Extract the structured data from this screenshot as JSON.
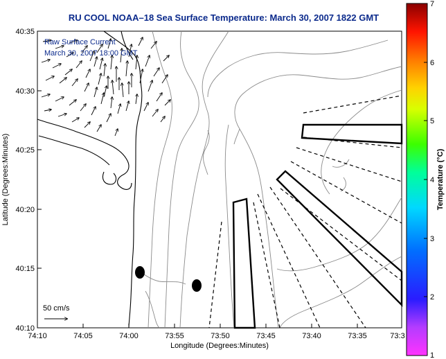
{
  "title": "RU COOL  NOAA–18  Sea Surface Temperature:  March 30, 2007 1822 GMT",
  "annotation": {
    "line1": "Raw Surface Current",
    "line2": "March 30, 2007 18:00 GMT"
  },
  "scale_label": "50 cm/s",
  "x_axis": {
    "label": "Longitude (Degrees:Minutes)",
    "ticks": [
      "74:10",
      "74:05",
      "74:00",
      "73:55",
      "73:50",
      "73:45",
      "73:40",
      "73:35",
      "73:3"
    ]
  },
  "y_axis": {
    "label": "Latitude (Degrees:Minutes)",
    "ticks": [
      "40:35",
      "40:30",
      "40:25",
      "40:20",
      "40:15",
      "40:10"
    ]
  },
  "colorbar": {
    "label": "Temperature (°C)",
    "ticks": [
      "7",
      "6",
      "5",
      "4",
      "3",
      "2",
      "1"
    ],
    "range": [
      1,
      7
    ]
  },
  "colors": {
    "title": "#0b2a8c",
    "annotation": "#0b2a8c",
    "contours": "#8a8a8a",
    "coast": "#000000"
  }
}
